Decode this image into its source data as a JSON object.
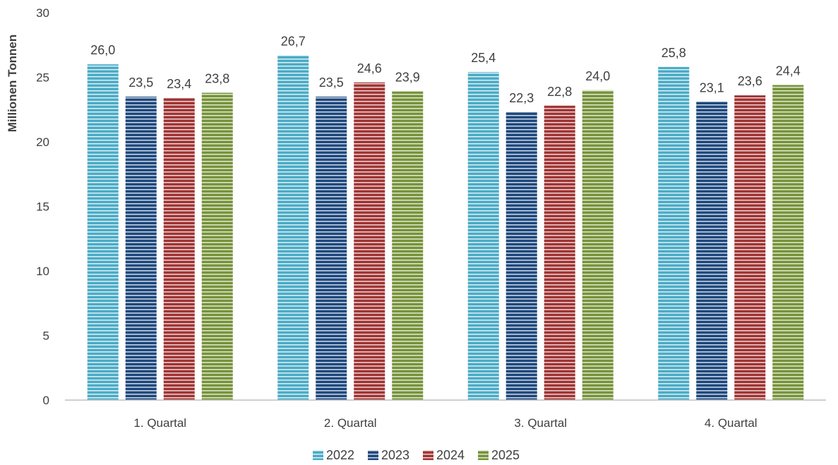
{
  "chart_data": {
    "type": "bar",
    "ylabel": "Millionen Tonnen",
    "xlabel": "",
    "ylim": [
      0,
      30
    ],
    "yticks": [
      "0",
      "5",
      "10",
      "15",
      "20",
      "25",
      "30"
    ],
    "categories": [
      "1. Quartal",
      "2. Quartal",
      "3. Quartal",
      "4. Quartal"
    ],
    "series": [
      {
        "name": "2022",
        "color": "#4bacc6",
        "stripe": "#e6f3f7",
        "values": [
          26.0,
          26.7,
          25.4,
          25.8
        ],
        "labels": [
          "26,0",
          "26,7",
          "25,4",
          "25,8"
        ]
      },
      {
        "name": "2023",
        "color": "#1f497d",
        "stripe": "#d7e0ec",
        "values": [
          23.5,
          23.5,
          22.3,
          23.1
        ],
        "labels": [
          "23,5",
          "23,5",
          "22,3",
          "23,1"
        ]
      },
      {
        "name": "2024",
        "color": "#a03535",
        "stripe": "#f2dcdc",
        "values": [
          23.4,
          24.6,
          22.8,
          23.6
        ],
        "labels": [
          "23,4",
          "24,6",
          "22,8",
          "23,6"
        ]
      },
      {
        "name": "2025",
        "color": "#77933c",
        "stripe": "#e6edd7",
        "values": [
          23.8,
          23.9,
          24.0,
          24.4
        ],
        "labels": [
          "23,8",
          "23,9",
          "24,0",
          "24,4"
        ]
      }
    ],
    "grid": false,
    "legend_position": "bottom"
  }
}
